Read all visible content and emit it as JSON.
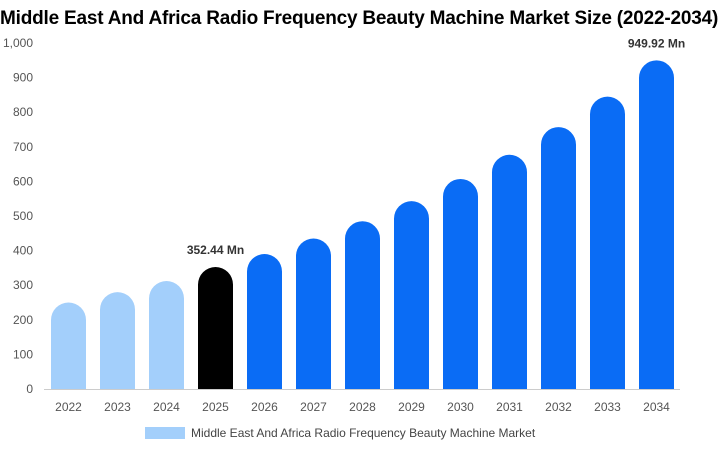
{
  "chart_data": {
    "type": "bar",
    "title": "Middle East And Africa Radio Frequency Beauty Machine Market Size (2022-2034)",
    "categories": [
      "2022",
      "2023",
      "2024",
      "2025",
      "2026",
      "2027",
      "2028",
      "2029",
      "2030",
      "2031",
      "2032",
      "2033",
      "2034"
    ],
    "series": [
      {
        "name": "Middle East And Africa Radio Frequency Beauty Machine Market",
        "values": [
          250,
          280,
          312,
          352.44,
          390,
          435,
          485,
          543,
          607,
          677,
          757,
          845,
          949.92
        ]
      }
    ],
    "ylim": [
      0,
      1000
    ],
    "yticks": [
      "0",
      "100",
      "200",
      "300",
      "400",
      "500",
      "600",
      "700",
      "800",
      "900",
      "1,000"
    ],
    "data_labels": [
      {
        "index": 3,
        "text": "352.44 Mn"
      },
      {
        "index": 12,
        "text": "949.92 Mn"
      }
    ],
    "colors": {
      "historical": "#a3cffb",
      "base_year": "#000000",
      "forecast": "#0a6cf5"
    },
    "grid": false,
    "legend_position": "bottom"
  }
}
